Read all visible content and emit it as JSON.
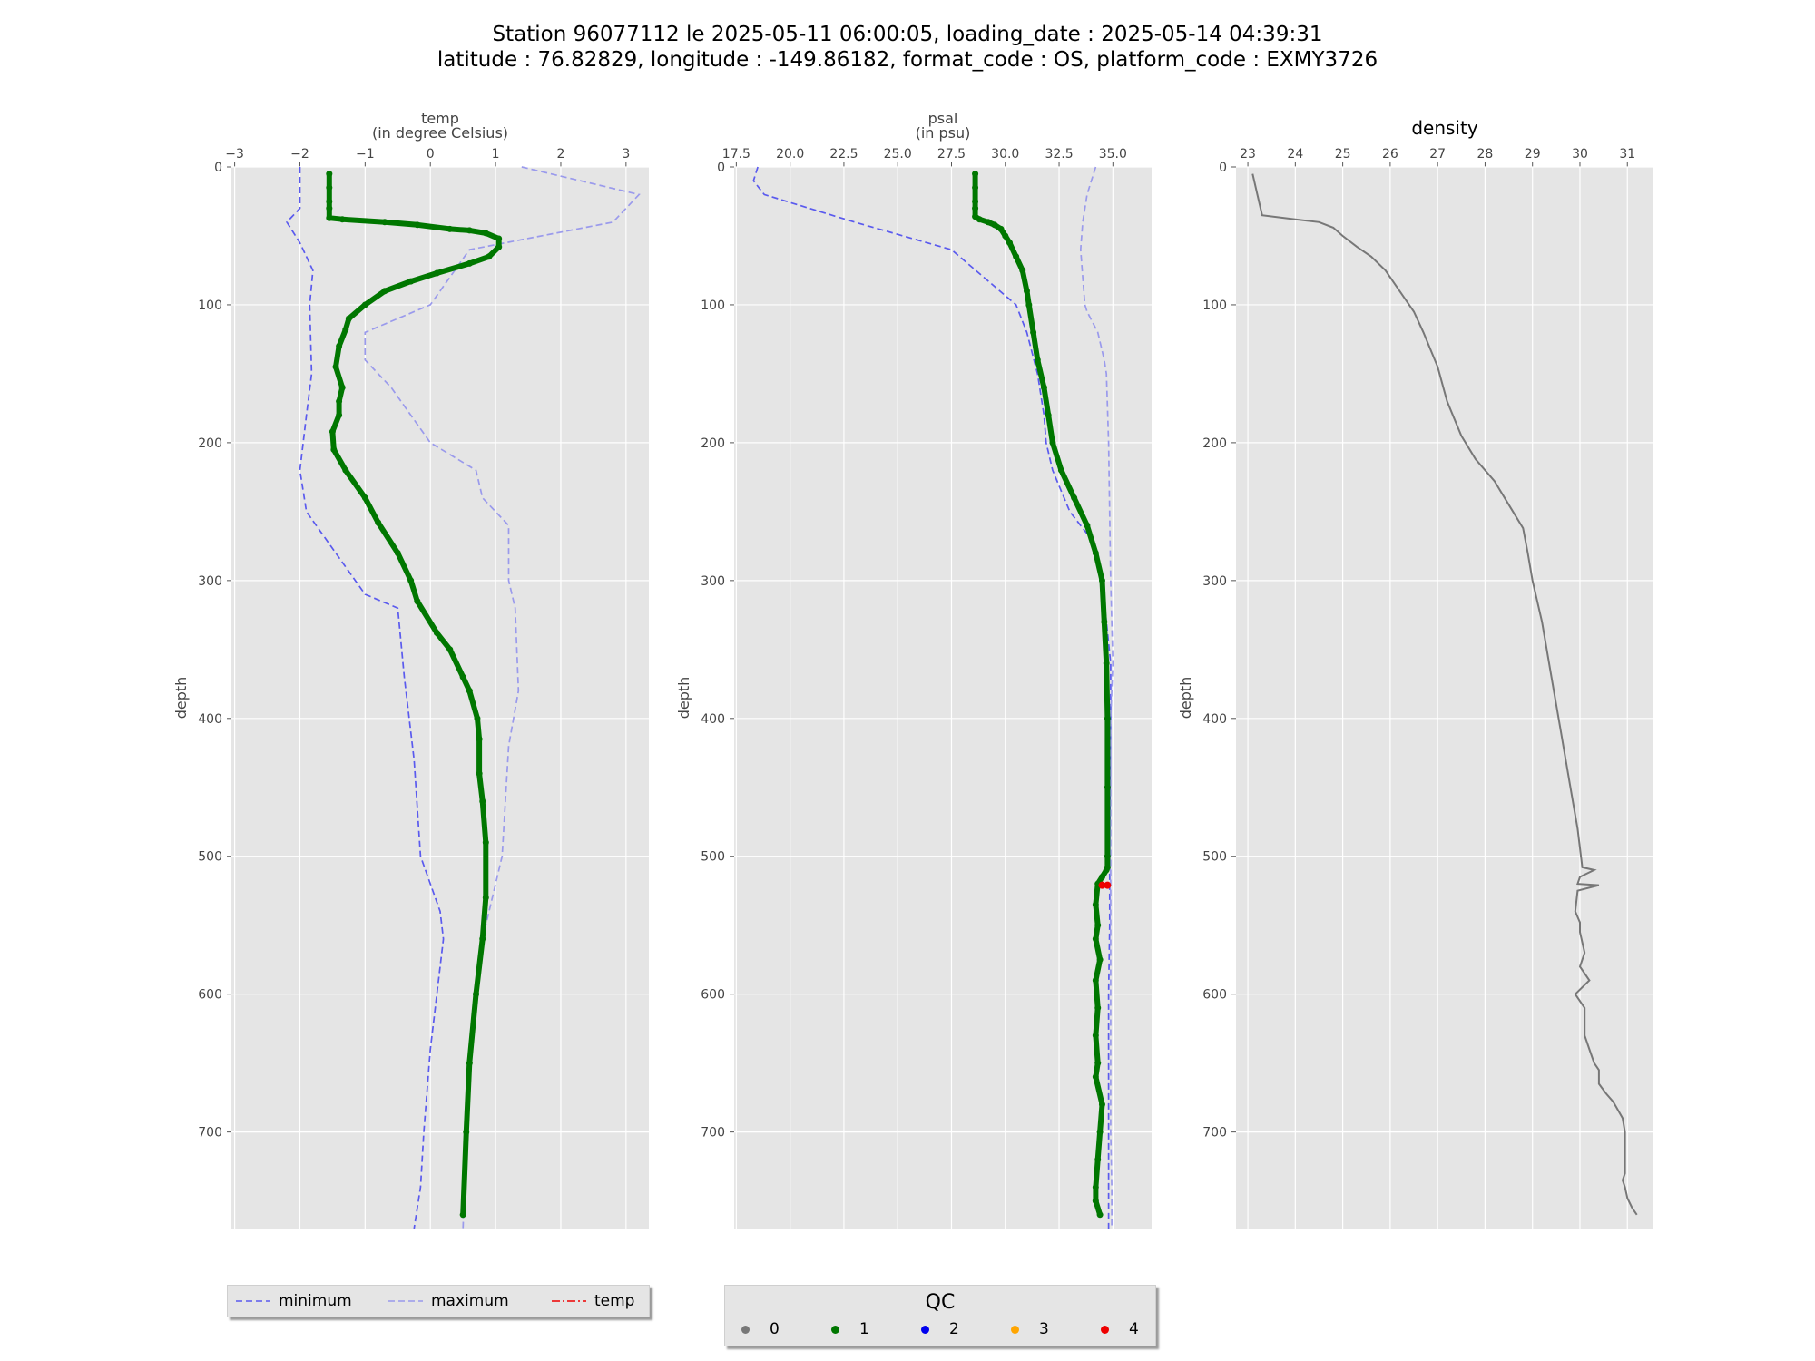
{
  "title": {
    "line1": "Station 96077112 le 2025-05-11 06:00:05, loading_date : 2025-05-14 04:39:31",
    "line2": "latitude : 76.82829, longitude : -149.86182, format_code : OS, platform_code : EXMY3726"
  },
  "colors": {
    "panel_bg": "#e5e5e5",
    "grid": "#ffffff",
    "minimum": "#5a5aee",
    "maximum": "#9a9aec",
    "profile": "#007700",
    "flag": "#ee0000",
    "density": "#777777"
  },
  "legend_lines": {
    "items": [
      {
        "label": "minimum",
        "color": "#5a5aee",
        "dash": "7,4"
      },
      {
        "label": "maximum",
        "color": "#9a9aec",
        "dash": "7,4"
      },
      {
        "label": "temp",
        "color": "#ee0000",
        "dash": "9,3,2,3"
      }
    ]
  },
  "legend_qc": {
    "title": "QC",
    "items": [
      {
        "label": "0",
        "color": "#777777"
      },
      {
        "label": "1",
        "color": "#007700"
      },
      {
        "label": "2",
        "color": "#0000ee"
      },
      {
        "label": "3",
        "color": "#ffa500"
      },
      {
        "label": "4",
        "color": "#ee0000"
      }
    ]
  },
  "chart_data": [
    {
      "type": "line",
      "title": "temp\n(in degree Celsius)",
      "xlabel": "temp (in degree Celsius)",
      "ylabel": "depth",
      "xlim": [
        -3.05,
        3.35
      ],
      "ylim": [
        770,
        0
      ],
      "x_ticks": [
        -3,
        -2,
        -1,
        0,
        1,
        2,
        3
      ],
      "x_tick_labels": [
        "−3",
        "−2",
        "−1",
        "0",
        "1",
        "2",
        "3"
      ],
      "y_ticks": [
        0,
        100,
        200,
        300,
        400,
        500,
        600,
        700
      ],
      "grid": true,
      "series": [
        {
          "name": "minimum",
          "style": "dashed",
          "x": [
            -2.0,
            -2.0,
            -2.2,
            -2.0,
            -1.8,
            -1.85,
            -1.82,
            -1.9,
            -2.0,
            -1.9,
            -1.6,
            -1.0,
            -0.5,
            -0.4,
            -0.25,
            -0.15,
            0.0,
            0.15,
            0.2,
            0.1,
            0.0,
            -0.1,
            -0.15,
            -0.25
          ],
          "y": [
            0,
            30,
            40,
            55,
            75,
            100,
            150,
            180,
            220,
            250,
            270,
            310,
            320,
            370,
            430,
            500,
            520,
            540,
            560,
            600,
            640,
            700,
            740,
            770
          ]
        },
        {
          "name": "maximum",
          "style": "dashed",
          "x": [
            1.4,
            3.2,
            2.8,
            0.6,
            0.0,
            -1.0,
            -1.0,
            -0.6,
            0.0,
            0.7,
            0.8,
            1.2,
            1.2,
            1.3,
            1.35,
            1.2,
            1.1,
            0.9,
            0.8,
            0.7,
            0.6,
            0.55,
            0.5
          ],
          "y": [
            0,
            20,
            40,
            60,
            100,
            120,
            140,
            160,
            200,
            220,
            240,
            260,
            300,
            320,
            380,
            420,
            500,
            540,
            560,
            600,
            650,
            700,
            770
          ]
        },
        {
          "name": "temp profile (QC 1)",
          "style": "thick",
          "x": [
            -1.55,
            -1.55,
            -1.55,
            -1.55,
            -1.55,
            -1.35,
            -0.7,
            -0.2,
            0.3,
            0.6,
            0.85,
            1.05,
            1.05,
            0.9,
            0.6,
            0.1,
            -0.3,
            -0.7,
            -1.0,
            -1.25,
            -1.3,
            -1.4,
            -1.45,
            -1.35,
            -1.4,
            -1.4,
            -1.5,
            -1.48,
            -1.3,
            -1.0,
            -0.8,
            -0.5,
            -0.3,
            -0.2,
            0.1,
            0.3,
            0.5,
            0.6,
            0.72,
            0.75,
            0.75,
            0.8,
            0.85,
            0.85,
            0.8,
            0.7,
            0.6,
            0.55,
            0.5
          ],
          "y": [
            5,
            15,
            25,
            30,
            37,
            38,
            40,
            42,
            45,
            46,
            48,
            52,
            58,
            65,
            70,
            77,
            83,
            90,
            100,
            110,
            118,
            130,
            145,
            160,
            170,
            180,
            192,
            205,
            220,
            240,
            258,
            280,
            300,
            315,
            338,
            350,
            370,
            380,
            400,
            415,
            440,
            460,
            490,
            530,
            560,
            600,
            650,
            700,
            760
          ]
        }
      ]
    },
    {
      "type": "line",
      "title": "psal\n(in psu)",
      "xlabel": "psal (in psu)",
      "ylabel": "depth",
      "xlim": [
        17.4,
        36.8
      ],
      "ylim": [
        770,
        0
      ],
      "x_ticks": [
        17.5,
        20.0,
        22.5,
        25.0,
        27.5,
        30.0,
        32.5,
        35.0
      ],
      "x_tick_labels": [
        "17.5",
        "20.0",
        "22.5",
        "25.0",
        "27.5",
        "30.0",
        "32.5",
        "35.0"
      ],
      "y_ticks": [
        0,
        100,
        200,
        300,
        400,
        500,
        600,
        700
      ],
      "grid": true,
      "series": [
        {
          "name": "minimum",
          "style": "dashed",
          "x": [
            18.5,
            18.3,
            18.8,
            23.0,
            27.5,
            29.0,
            30.5,
            31.0,
            31.5,
            31.8,
            31.9,
            32.2,
            33.0,
            34.0,
            34.5,
            34.7,
            34.9,
            34.9,
            34.85,
            34.85,
            34.8,
            34.8,
            34.8
          ],
          "y": [
            0,
            10,
            20,
            40,
            60,
            80,
            100,
            120,
            150,
            180,
            200,
            220,
            250,
            270,
            300,
            330,
            360,
            400,
            500,
            550,
            600,
            700,
            770
          ]
        },
        {
          "name": "maximum",
          "style": "dashed",
          "x": [
            34.2,
            34.0,
            33.8,
            33.6,
            33.5,
            33.6,
            33.7,
            33.8,
            34.3,
            34.6,
            34.7,
            34.8,
            34.9,
            35.0,
            34.95,
            34.9,
            34.9,
            34.9,
            34.9,
            34.9,
            34.95,
            34.95
          ],
          "y": [
            0,
            10,
            20,
            40,
            60,
            80,
            100,
            105,
            120,
            140,
            150,
            200,
            300,
            360,
            380,
            400,
            500,
            550,
            600,
            700,
            740,
            770
          ]
        },
        {
          "name": "psal profile (QC 1)",
          "style": "thick",
          "x": [
            28.6,
            28.6,
            28.6,
            28.6,
            28.6,
            28.8,
            29.2,
            29.5,
            29.8,
            30.0,
            30.2,
            30.5,
            30.8,
            31.0,
            31.1,
            31.3,
            31.5,
            31.8,
            32.0,
            32.2,
            32.6,
            33.2,
            33.8,
            34.2,
            34.5,
            34.6,
            34.7,
            34.75,
            34.75,
            34.75,
            34.75,
            34.7,
            34.5,
            34.3,
            34.2,
            34.3,
            34.2,
            34.4,
            34.2,
            34.3,
            34.2,
            34.3,
            34.2,
            34.5,
            34.4,
            34.3,
            34.2,
            34.2,
            34.4
          ],
          "y": [
            5,
            15,
            25,
            30,
            36,
            38,
            40,
            42,
            45,
            50,
            55,
            65,
            75,
            90,
            100,
            120,
            140,
            160,
            180,
            200,
            220,
            240,
            260,
            280,
            300,
            330,
            360,
            400,
            450,
            500,
            508,
            510,
            515,
            520,
            535,
            550,
            560,
            575,
            590,
            610,
            630,
            650,
            660,
            680,
            700,
            720,
            740,
            750,
            760
          ]
        },
        {
          "name": "psal flag (QC 4)",
          "style": "flag",
          "x": [
            34.5,
            34.75
          ],
          "y": [
            521,
            521
          ]
        }
      ]
    },
    {
      "type": "line",
      "title": "density",
      "xlabel": "density",
      "ylabel": "depth",
      "xlim": [
        22.75,
        31.55
      ],
      "ylim": [
        770,
        0
      ],
      "x_ticks": [
        23,
        24,
        25,
        26,
        27,
        28,
        29,
        30,
        31
      ],
      "x_tick_labels": [
        "23",
        "24",
        "25",
        "26",
        "27",
        "28",
        "29",
        "30",
        "31"
      ],
      "y_ticks": [
        0,
        100,
        200,
        300,
        400,
        500,
        600,
        700
      ],
      "grid": true,
      "series": [
        {
          "name": "density",
          "style": "solid",
          "x": [
            23.1,
            23.2,
            23.3,
            24.0,
            24.5,
            24.8,
            25.0,
            25.3,
            25.6,
            25.9,
            26.1,
            26.3,
            26.5,
            26.7,
            27.0,
            27.2,
            27.5,
            27.8,
            28.2,
            28.5,
            28.8,
            28.9,
            29.0,
            29.2,
            29.4,
            29.6,
            29.8,
            29.95,
            30.05,
            30.3,
            30.0,
            29.95,
            30.4,
            29.95,
            29.9,
            30.0,
            30.0,
            30.1,
            30.0,
            30.2,
            29.9,
            30.1,
            30.1,
            30.2,
            30.3,
            30.4,
            30.4,
            30.55,
            30.7,
            30.9,
            30.95,
            30.95,
            30.95,
            30.9,
            30.95,
            31.0,
            31.1,
            31.2
          ],
          "y": [
            5,
            20,
            35,
            38,
            40,
            44,
            50,
            58,
            65,
            75,
            85,
            95,
            105,
            120,
            145,
            170,
            195,
            212,
            228,
            245,
            262,
            280,
            300,
            330,
            370,
            410,
            450,
            480,
            508,
            510,
            515,
            520,
            521,
            525,
            540,
            548,
            555,
            570,
            580,
            590,
            600,
            610,
            630,
            640,
            650,
            655,
            665,
            672,
            678,
            690,
            700,
            720,
            730,
            735,
            740,
            748,
            755,
            760
          ]
        }
      ]
    }
  ]
}
